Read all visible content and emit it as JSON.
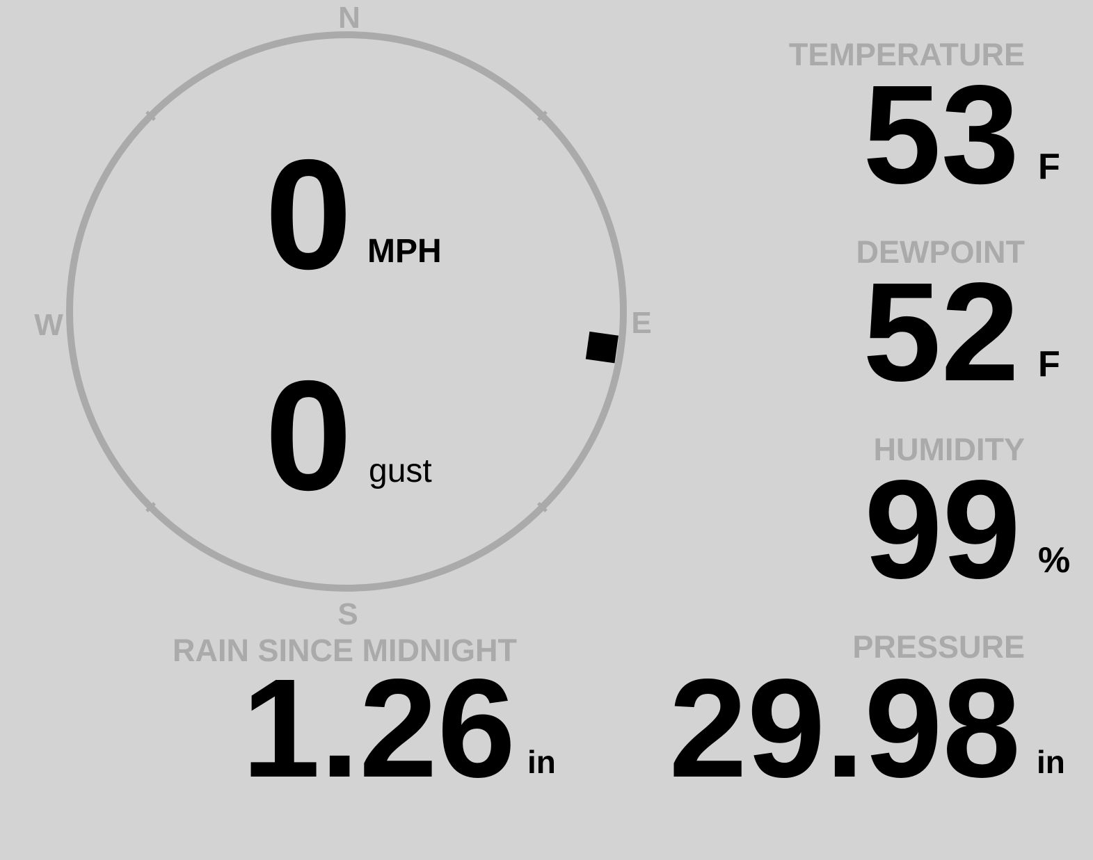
{
  "wind": {
    "speed": "0",
    "speed_unit": "MPH",
    "gust": "0",
    "gust_unit": "gust",
    "direction_degrees": 98,
    "compass": {
      "n": "N",
      "e": "E",
      "s": "S",
      "w": "W"
    }
  },
  "temperature": {
    "label": "TEMPERATURE",
    "value": "53",
    "unit": "F"
  },
  "dewpoint": {
    "label": "DEWPOINT",
    "value": "52",
    "unit": "F"
  },
  "humidity": {
    "label": "HUMIDITY",
    "value": "99",
    "unit": "%"
  },
  "pressure": {
    "label": "PRESSURE",
    "value": "29.98",
    "unit": "in"
  },
  "rain": {
    "label": "RAIN SINCE MIDNIGHT",
    "value": "1.26",
    "unit": "in"
  },
  "colors": {
    "background": "#d3d3d3",
    "label": "#aaaaaa",
    "value": "#000000",
    "compass_ring": "#aaaaaa"
  }
}
